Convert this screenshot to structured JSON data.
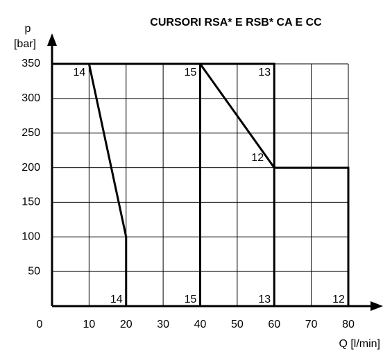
{
  "chart_data": {
    "type": "line",
    "title": "CURSORI RSA* E RSB*  CA E CC",
    "y_label": [
      "p",
      "[bar]"
    ],
    "x_label": "Q [l/min]",
    "xlim": [
      0,
      80
    ],
    "ylim": [
      0,
      350
    ],
    "xticks": [
      0,
      10,
      20,
      30,
      40,
      50,
      60,
      70,
      80
    ],
    "yticks": [
      50,
      100,
      150,
      200,
      250,
      300,
      350
    ],
    "grid": true,
    "series": [
      {
        "name": "14",
        "color": "#000000",
        "x": [
          0,
          10,
          20,
          20
        ],
        "values": [
          350,
          350,
          100,
          0
        ]
      },
      {
        "name": "15",
        "color": "#000000",
        "x": [
          0,
          40,
          40
        ],
        "values": [
          350,
          350,
          0
        ]
      },
      {
        "name": "13",
        "color": "#000000",
        "x": [
          0,
          60,
          60
        ],
        "values": [
          350,
          350,
          0
        ]
      },
      {
        "name": "12",
        "color": "#000000",
        "x": [
          0,
          40,
          60,
          80,
          80
        ],
        "values": [
          350,
          350,
          200,
          200,
          0
        ]
      }
    ]
  }
}
